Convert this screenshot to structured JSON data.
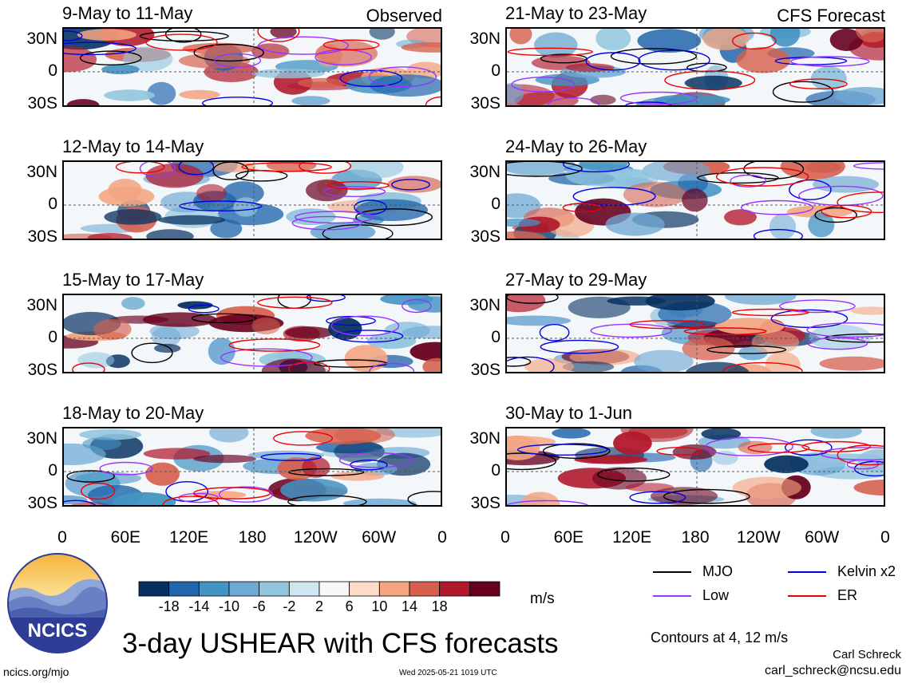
{
  "panels": [
    {
      "title": "9-May to 11-May",
      "tag": "Observed"
    },
    {
      "title": "12-May to 14-May",
      "tag": ""
    },
    {
      "title": "15-May to 17-May",
      "tag": ""
    },
    {
      "title": "18-May to 20-May",
      "tag": ""
    },
    {
      "title": "21-May to 23-May",
      "tag": "CFS Forecast"
    },
    {
      "title": "24-May to 26-May",
      "tag": ""
    },
    {
      "title": "27-May to 29-May",
      "tag": ""
    },
    {
      "title": "30-May to 1-Jun",
      "tag": ""
    }
  ],
  "lat_labels": [
    "30N",
    "0",
    "30S"
  ],
  "lon_labels": [
    "0",
    "60E",
    "120E",
    "180",
    "120W",
    "60W",
    "0"
  ],
  "colorbar": {
    "ticks": [
      "-18",
      "-14",
      "-10",
      "-6",
      "-2",
      "2",
      "6",
      "10",
      "14",
      "18"
    ],
    "colors": [
      "#053061",
      "#2166ac",
      "#4393c3",
      "#6ea8d4",
      "#92c5de",
      "#d1e5f0",
      "#f7f7f7",
      "#fddbc7",
      "#f4a582",
      "#d6604d",
      "#b2182b",
      "#67001f"
    ],
    "unit": "m/s"
  },
  "legend": {
    "items": [
      {
        "label": "MJO",
        "color": "#000000"
      },
      {
        "label": "Kelvin x2",
        "color": "#0000dd"
      },
      {
        "label": "Low",
        "color": "#9933ff"
      },
      {
        "label": "ER",
        "color": "#ee0000"
      }
    ],
    "contour_note": "Contours at 4, 12 m/s"
  },
  "logo": {
    "text": "NCICS"
  },
  "title": "3-day USHEAR with CFS forecasts",
  "author": "Carl Schreck",
  "email": "carl_schreck@ncsu.edu",
  "site": "ncics.org/mjo",
  "timestamp": "Wed 2025-05-21 1019 UTC",
  "chart_data": {
    "type": "heatmap",
    "title": "3-day USHEAR with CFS forecasts",
    "variable": "USHEAR",
    "units": "m/s",
    "contour_levels": [
      4,
      12
    ],
    "contour_series": [
      "MJO",
      "Kelvin x2",
      "Low",
      "ER"
    ],
    "panels": [
      "9-May to 11-May",
      "12-May to 14-May",
      "15-May to 17-May",
      "18-May to 20-May",
      "21-May to 23-May",
      "24-May to 26-May",
      "27-May to 29-May",
      "30-May to 1-Jun"
    ],
    "x_ticks": [
      "0",
      "60E",
      "120E",
      "180",
      "120W",
      "60W",
      "0"
    ],
    "y_ticks": [
      "30N",
      "0",
      "30S"
    ],
    "color_scale": [
      -18,
      -14,
      -10,
      -6,
      -2,
      2,
      6,
      10,
      14,
      18
    ]
  }
}
